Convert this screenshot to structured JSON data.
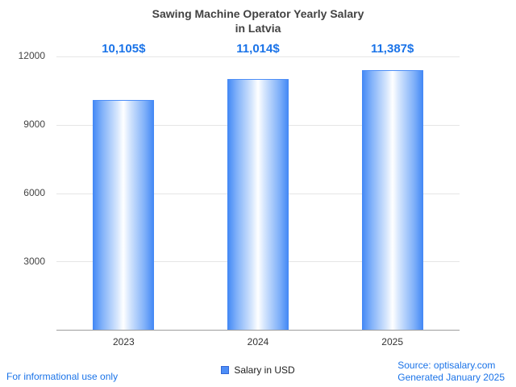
{
  "chart_data": {
    "type": "bar",
    "title": "Sawing Machine Operator Yearly Salary in Latvia",
    "title_lines": [
      "Sawing Machine Operator Yearly Salary",
      "in Latvia"
    ],
    "categories": [
      "2023",
      "2024",
      "2025"
    ],
    "values": [
      10105,
      11014,
      11387
    ],
    "value_labels": [
      "10,105$",
      "11,014$",
      "11,387$"
    ],
    "series_name": "Salary in USD",
    "ylim": [
      0,
      12000
    ],
    "yticks": [
      3000,
      6000,
      9000,
      12000
    ],
    "grid": true,
    "legend": {
      "label": "Salary in USD",
      "position": "bottom"
    }
  },
  "footer": {
    "left": "For informational use only",
    "source": "Source: optisalary.com",
    "generated": "Generated January 2025"
  },
  "colors": {
    "accent_blue": "#1a73e8",
    "bar_edge_blue": "#4187f5",
    "bar_center": "#ffffff",
    "gridline": "#e6e6e6",
    "axis_line": "#9e9e9e",
    "title_text": "#424242"
  }
}
